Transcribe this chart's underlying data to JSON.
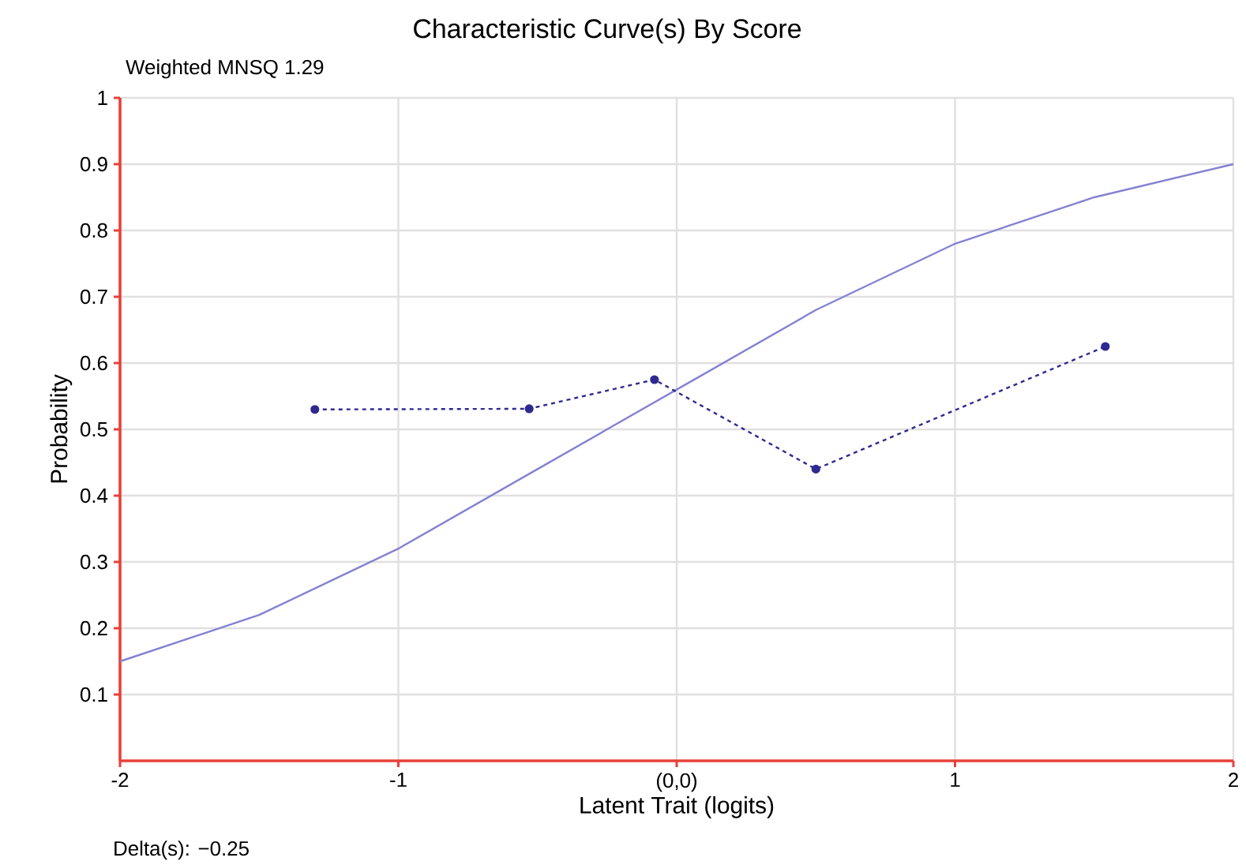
{
  "chart_data": {
    "type": "line",
    "title": "Characteristic Curve(s) By Score",
    "xlabel": "Latent Trait (logits)",
    "ylabel": "Probability",
    "annotations": [
      "Weighted MNSQ 1.29",
      "Delta(s):   −0.25"
    ],
    "series": [
      {
        "color": "#8482d2",
        "marker": "none",
        "line_style": "solid",
        "x": [
          -2,
          -1.5,
          -1,
          -0.5,
          0,
          0.5,
          1,
          1.5,
          2
        ],
        "values": [
          0.15,
          0.22,
          0.32,
          0.44,
          0.56,
          0.68,
          0.78,
          0.85,
          0.9
        ]
      },
      {
        "color": "#2e2a8f",
        "marker": "circle",
        "line_style": "dotted",
        "x": [
          -1.3,
          -0.53,
          -0.08,
          0.5,
          1.54
        ],
        "values": [
          0.53,
          0.531,
          0.575,
          0.44,
          0.625
        ]
      }
    ],
    "xlim": [
      -2,
      2
    ],
    "xticks": [
      -2,
      -1,
      {
        "value": 0,
        "label": "(0,0)"
      },
      1,
      2
    ],
    "ylim": [
      0,
      1
    ],
    "yticks": [
      0.1,
      0.2,
      0.3,
      0.4,
      0.5,
      0.6,
      0.7,
      0.8,
      0.9,
      1
    ],
    "grid": true
  }
}
